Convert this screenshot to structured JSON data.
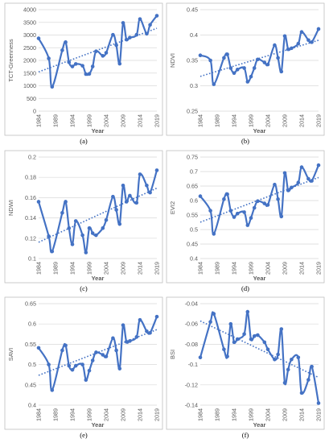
{
  "chart_data": [
    {
      "type": "line",
      "panel_label": "(a)",
      "ylabel": "TCT-Greenness",
      "xlabel": "Year",
      "ylim": [
        0,
        4000
      ],
      "yticks": [
        "0",
        "500",
        "1000",
        "1500",
        "2000",
        "2500",
        "3000",
        "3500",
        "4000"
      ],
      "xticks": [
        "1984",
        "1989",
        "1994",
        "1999",
        "2004",
        "2009",
        "2014",
        "2019"
      ],
      "xlim": [
        1984,
        2019
      ],
      "grid": true,
      "trendline": "dotted linear",
      "x": [
        1984,
        1987,
        1988,
        1991,
        1992,
        1993,
        1994,
        1995,
        1997,
        1998,
        1999,
        2000,
        2001,
        2003,
        2004,
        2006,
        2007,
        2008,
        2009,
        2010,
        2011,
        2013,
        2014,
        2016,
        2017,
        2019
      ],
      "values": [
        2870,
        2080,
        960,
        2400,
        2720,
        1930,
        1760,
        1860,
        1790,
        1460,
        1470,
        1760,
        2360,
        2180,
        2300,
        3010,
        2600,
        1870,
        3480,
        2820,
        2900,
        3010,
        3630,
        3050,
        3400,
        3760
      ]
    },
    {
      "type": "line",
      "panel_label": "(b)",
      "ylabel": "NDVI",
      "xlabel": "Year",
      "ylim": [
        0.25,
        0.45
      ],
      "yticks": [
        "0.25",
        "0.3",
        "0.35",
        "0.4",
        "0.45"
      ],
      "xticks": [
        "1984",
        "1989",
        "1994",
        "1999",
        "2004",
        "2009",
        "2014",
        "2019"
      ],
      "xlim": [
        1984,
        2019
      ],
      "grid": true,
      "trendline": "dotted linear",
      "x": [
        1984,
        1987,
        1988,
        1991,
        1992,
        1993,
        1994,
        1995,
        1997,
        1998,
        1999,
        2000,
        2001,
        2003,
        2004,
        2006,
        2007,
        2008,
        2009,
        2010,
        2011,
        2013,
        2014,
        2016,
        2017,
        2019
      ],
      "values": [
        0.36,
        0.35,
        0.303,
        0.355,
        0.362,
        0.335,
        0.325,
        0.332,
        0.335,
        0.308,
        0.318,
        0.335,
        0.352,
        0.346,
        0.342,
        0.38,
        0.355,
        0.328,
        0.398,
        0.372,
        0.374,
        0.383,
        0.406,
        0.39,
        0.386,
        0.412
      ]
    },
    {
      "type": "line",
      "panel_label": "(c)",
      "ylabel": "NDWI",
      "xlabel": "Year",
      "ylim": [
        0.1,
        0.2
      ],
      "yticks": [
        "0.1",
        "0.12",
        "0.14",
        "0.16",
        "0.18",
        "0.2"
      ],
      "xticks": [
        "1984",
        "1989",
        "1994",
        "1999",
        "2004",
        "2009",
        "2014",
        "2019"
      ],
      "xlim": [
        1984,
        2019
      ],
      "grid": true,
      "trendline": "dotted linear",
      "x": [
        1984,
        1987,
        1988,
        1991,
        1992,
        1993,
        1994,
        1995,
        1997,
        1998,
        1999,
        2000,
        2001,
        2003,
        2004,
        2006,
        2007,
        2008,
        2009,
        2010,
        2011,
        2013,
        2014,
        2016,
        2017,
        2019
      ],
      "values": [
        0.156,
        0.122,
        0.107,
        0.145,
        0.156,
        0.13,
        0.114,
        0.137,
        0.123,
        0.106,
        0.13,
        0.125,
        0.123,
        0.13,
        0.138,
        0.161,
        0.148,
        0.134,
        0.172,
        0.156,
        0.162,
        0.155,
        0.183,
        0.172,
        0.165,
        0.187
      ]
    },
    {
      "type": "line",
      "panel_label": "(d)",
      "ylabel": "EVI2",
      "xlabel": "Year",
      "ylim": [
        0.4,
        0.75
      ],
      "yticks": [
        "0.4",
        "0.45",
        "0.5",
        "0.55",
        "0.6",
        "0.65",
        "0.7",
        "0.75"
      ],
      "xticks": [
        "1984",
        "1989",
        "1994",
        "1999",
        "2004",
        "2009",
        "2014",
        "2019"
      ],
      "xlim": [
        1984,
        2019
      ],
      "grid": true,
      "trendline": "dotted linear",
      "x": [
        1984,
        1987,
        1988,
        1991,
        1992,
        1993,
        1994,
        1995,
        1997,
        1998,
        1999,
        2000,
        2001,
        2003,
        2004,
        2006,
        2007,
        2008,
        2009,
        2010,
        2011,
        2013,
        2014,
        2016,
        2017,
        2019
      ],
      "values": [
        0.615,
        0.565,
        0.485,
        0.605,
        0.622,
        0.565,
        0.543,
        0.555,
        0.56,
        0.515,
        0.54,
        0.575,
        0.598,
        0.59,
        0.585,
        0.655,
        0.605,
        0.545,
        0.695,
        0.635,
        0.645,
        0.662,
        0.715,
        0.675,
        0.668,
        0.722
      ]
    },
    {
      "type": "line",
      "panel_label": "(e)",
      "ylabel": "SAVI",
      "xlabel": "Year",
      "ylim": [
        0.4,
        0.65
      ],
      "yticks": [
        "0.4",
        "0.45",
        "0.5",
        "0.55",
        "0.6",
        "0.65"
      ],
      "xticks": [
        "1984",
        "1989",
        "1994",
        "1999",
        "2004",
        "2009",
        "2014",
        "2019"
      ],
      "xlim": [
        1984,
        2019
      ],
      "grid": true,
      "trendline": "dotted linear",
      "x": [
        1984,
        1987,
        1988,
        1991,
        1992,
        1993,
        1994,
        1995,
        1997,
        1998,
        1999,
        2000,
        2001,
        2003,
        2004,
        2006,
        2007,
        2008,
        2009,
        2010,
        2011,
        2013,
        2014,
        2016,
        2017,
        2019
      ],
      "values": [
        0.541,
        0.5,
        0.437,
        0.535,
        0.547,
        0.497,
        0.487,
        0.497,
        0.5,
        0.462,
        0.485,
        0.51,
        0.53,
        0.524,
        0.52,
        0.565,
        0.535,
        0.49,
        0.597,
        0.556,
        0.558,
        0.568,
        0.61,
        0.582,
        0.578,
        0.618
      ]
    },
    {
      "type": "line",
      "panel_label": "(f)",
      "ylabel": "BSI",
      "xlabel": "Year",
      "ylim": [
        -0.14,
        -0.04
      ],
      "yticks": [
        "-0.14",
        "-0.12",
        "-0.1",
        "-0.08",
        "-0.06",
        "-0.04"
      ],
      "xticks": [
        "1984",
        "1989",
        "1994",
        "1999",
        "2004",
        "2009",
        "2014",
        "2019"
      ],
      "xlim": [
        1984,
        2019
      ],
      "grid": true,
      "trendline": "dotted linear",
      "x": [
        1984,
        1987,
        1988,
        1991,
        1992,
        1993,
        1994,
        1995,
        1997,
        1998,
        1999,
        2000,
        2001,
        2003,
        2004,
        2006,
        2007,
        2008,
        2009,
        2010,
        2011,
        2013,
        2014,
        2016,
        2017,
        2019
      ],
      "values": [
        -0.093,
        -0.058,
        -0.05,
        -0.085,
        -0.092,
        -0.06,
        -0.078,
        -0.075,
        -0.07,
        -0.048,
        -0.075,
        -0.072,
        -0.071,
        -0.078,
        -0.085,
        -0.095,
        -0.09,
        -0.065,
        -0.118,
        -0.105,
        -0.095,
        -0.093,
        -0.128,
        -0.115,
        -0.102,
        -0.138
      ]
    }
  ]
}
